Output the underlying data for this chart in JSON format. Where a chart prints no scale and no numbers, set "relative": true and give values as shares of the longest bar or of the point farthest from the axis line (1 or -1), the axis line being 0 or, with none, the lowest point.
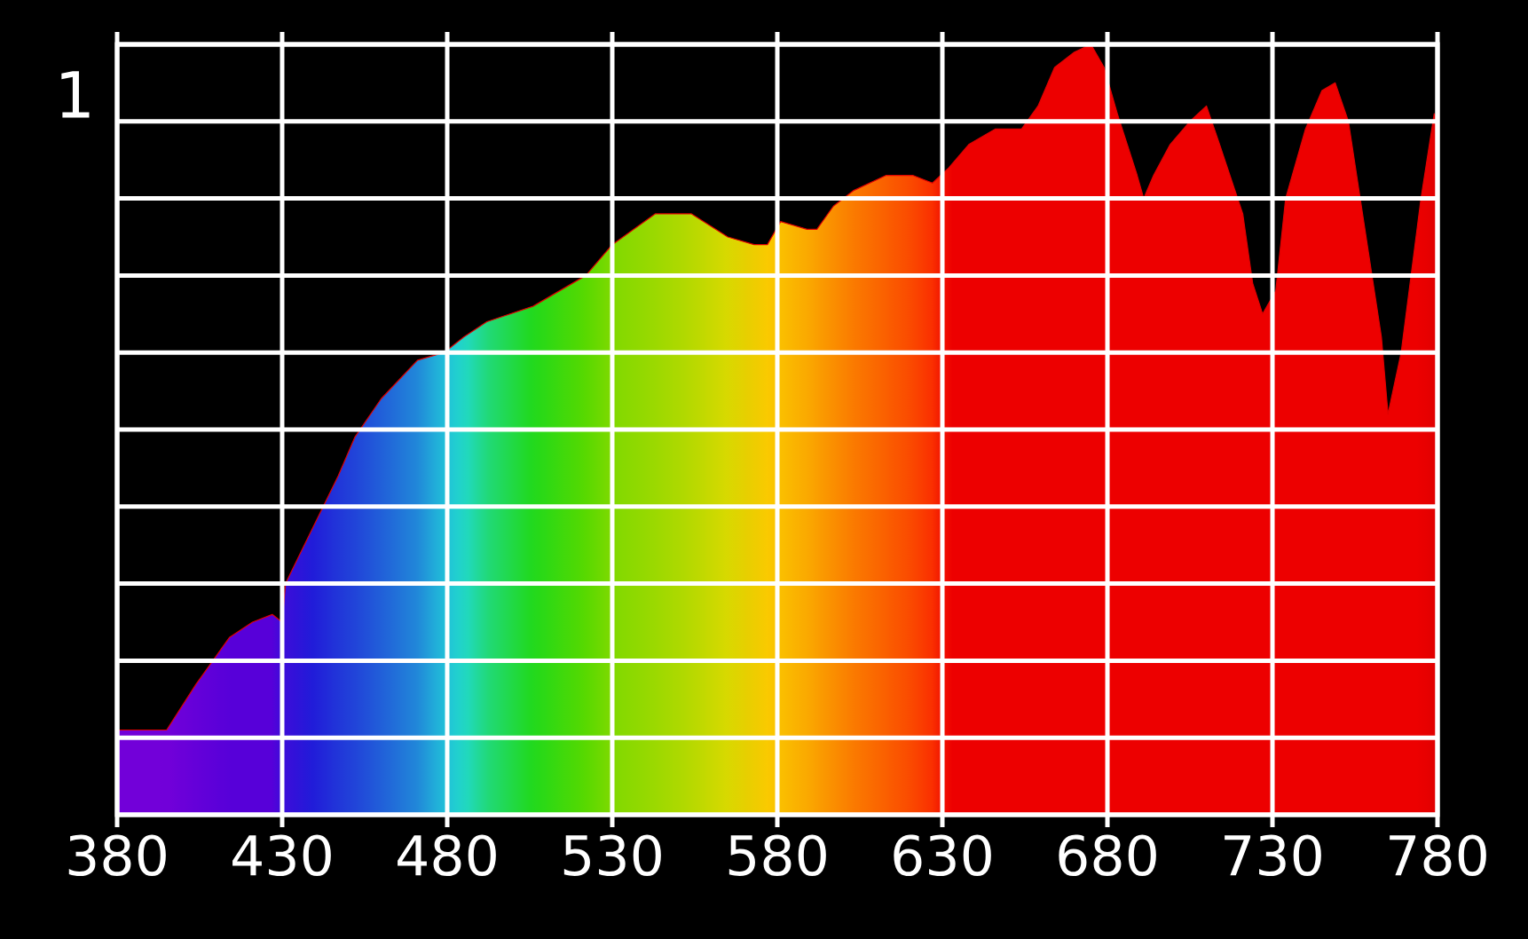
{
  "chart_data": {
    "type": "area",
    "relative": true,
    "x": [
      380,
      395,
      404,
      414,
      421,
      427,
      430,
      431,
      439,
      447,
      452,
      460,
      471,
      479,
      485,
      492,
      506,
      522,
      530,
      543,
      554,
      565,
      573,
      577,
      581,
      589,
      592,
      597,
      603,
      613,
      621,
      627,
      632,
      638,
      646,
      654,
      659,
      664,
      670,
      675,
      679,
      683,
      689,
      691,
      694,
      699,
      705,
      710,
      714,
      721,
      724,
      727,
      731,
      734,
      740,
      745,
      749,
      753,
      758,
      763,
      765,
      769,
      775,
      779,
      780
    ],
    "values": [
      0.11,
      0.11,
      0.17,
      0.23,
      0.25,
      0.26,
      0.25,
      0.3,
      0.37,
      0.44,
      0.49,
      0.54,
      0.59,
      0.6,
      0.62,
      0.64,
      0.66,
      0.7,
      0.74,
      0.78,
      0.78,
      0.75,
      0.74,
      0.74,
      0.77,
      0.76,
      0.76,
      0.79,
      0.81,
      0.83,
      0.83,
      0.82,
      0.84,
      0.87,
      0.89,
      0.89,
      0.92,
      0.97,
      0.99,
      1,
      0.97,
      0.91,
      0.83,
      0.8,
      0.83,
      0.87,
      0.9,
      0.92,
      0.87,
      0.78,
      0.69,
      0.65,
      0.68,
      0.8,
      0.89,
      0.94,
      0.95,
      0.9,
      0.76,
      0.62,
      0.52,
      0.6,
      0.8,
      0.91,
      0.9
    ],
    "colors": [
      "#6000ff",
      "#6000ff",
      "#5000ff",
      "#4000ff",
      "#4000ff",
      "#4000ff",
      "#2010ff",
      "#2010ff",
      "#0020ff",
      "#0040ff",
      "#0050ff",
      "#0070ff",
      "#00a0ff",
      "#00e0ff",
      "#00ffee",
      "#00ff90",
      "#00ff20",
      "#40ff00",
      "#70ff00",
      "#90ff00",
      "#b0ff00",
      "#d8ff00",
      "#f0f000",
      "#ffee00",
      "#ffe000",
      "#ffc800",
      "#ffbb00",
      "#ffa800",
      "#ff9000",
      "#ff7000",
      "#ff5500",
      "#ff3800",
      "#f00000",
      "#f00000",
      "#f00000",
      "#f00000",
      "#f00000",
      "#f00000",
      "#f00000",
      "#f00000",
      "#f00000",
      "#f00000",
      "#f00000",
      "#f00000",
      "#f00000",
      "#f00000",
      "#f00000",
      "#f00000",
      "#f00000",
      "#f00000",
      "#f00000",
      "#f00000",
      "#f00000",
      "#f00000",
      "#f00000",
      "#f00000",
      "#f00000",
      "#f00000",
      "#f00000",
      "#f00000",
      "#f00000",
      "#f00000",
      "#f00000",
      "#e00000",
      "#e00000"
    ],
    "xlim": [
      380,
      780
    ],
    "xticks": [
      380,
      430,
      480,
      530,
      580,
      630,
      680,
      730,
      780
    ],
    "grid": true,
    "annotations": [
      "1"
    ]
  }
}
